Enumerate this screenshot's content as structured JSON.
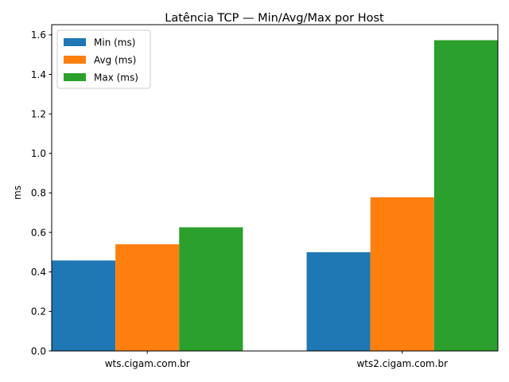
{
  "chart_data": {
    "type": "bar",
    "title": "Latência TCP — Min/Avg/Max por Host",
    "xlabel": "",
    "ylabel": "ms",
    "categories": [
      "wts.cigam.com.br",
      "wts2.cigam.com.br"
    ],
    "series": [
      {
        "name": "Min (ms)",
        "values": [
          0.458,
          0.5
        ],
        "color": "#1f77b4"
      },
      {
        "name": "Avg (ms)",
        "values": [
          0.54,
          0.778
        ],
        "color": "#ff7f0e"
      },
      {
        "name": "Max (ms)",
        "values": [
          0.626,
          1.573
        ],
        "color": "#2ca02c"
      }
    ],
    "ylim": [
      0,
      1.6516
    ],
    "yticks": [
      "0.0",
      "0.2",
      "0.4",
      "0.6",
      "0.8",
      "1.0",
      "1.2",
      "1.4",
      "1.6"
    ],
    "grid": false,
    "legend_position": "top-left"
  }
}
